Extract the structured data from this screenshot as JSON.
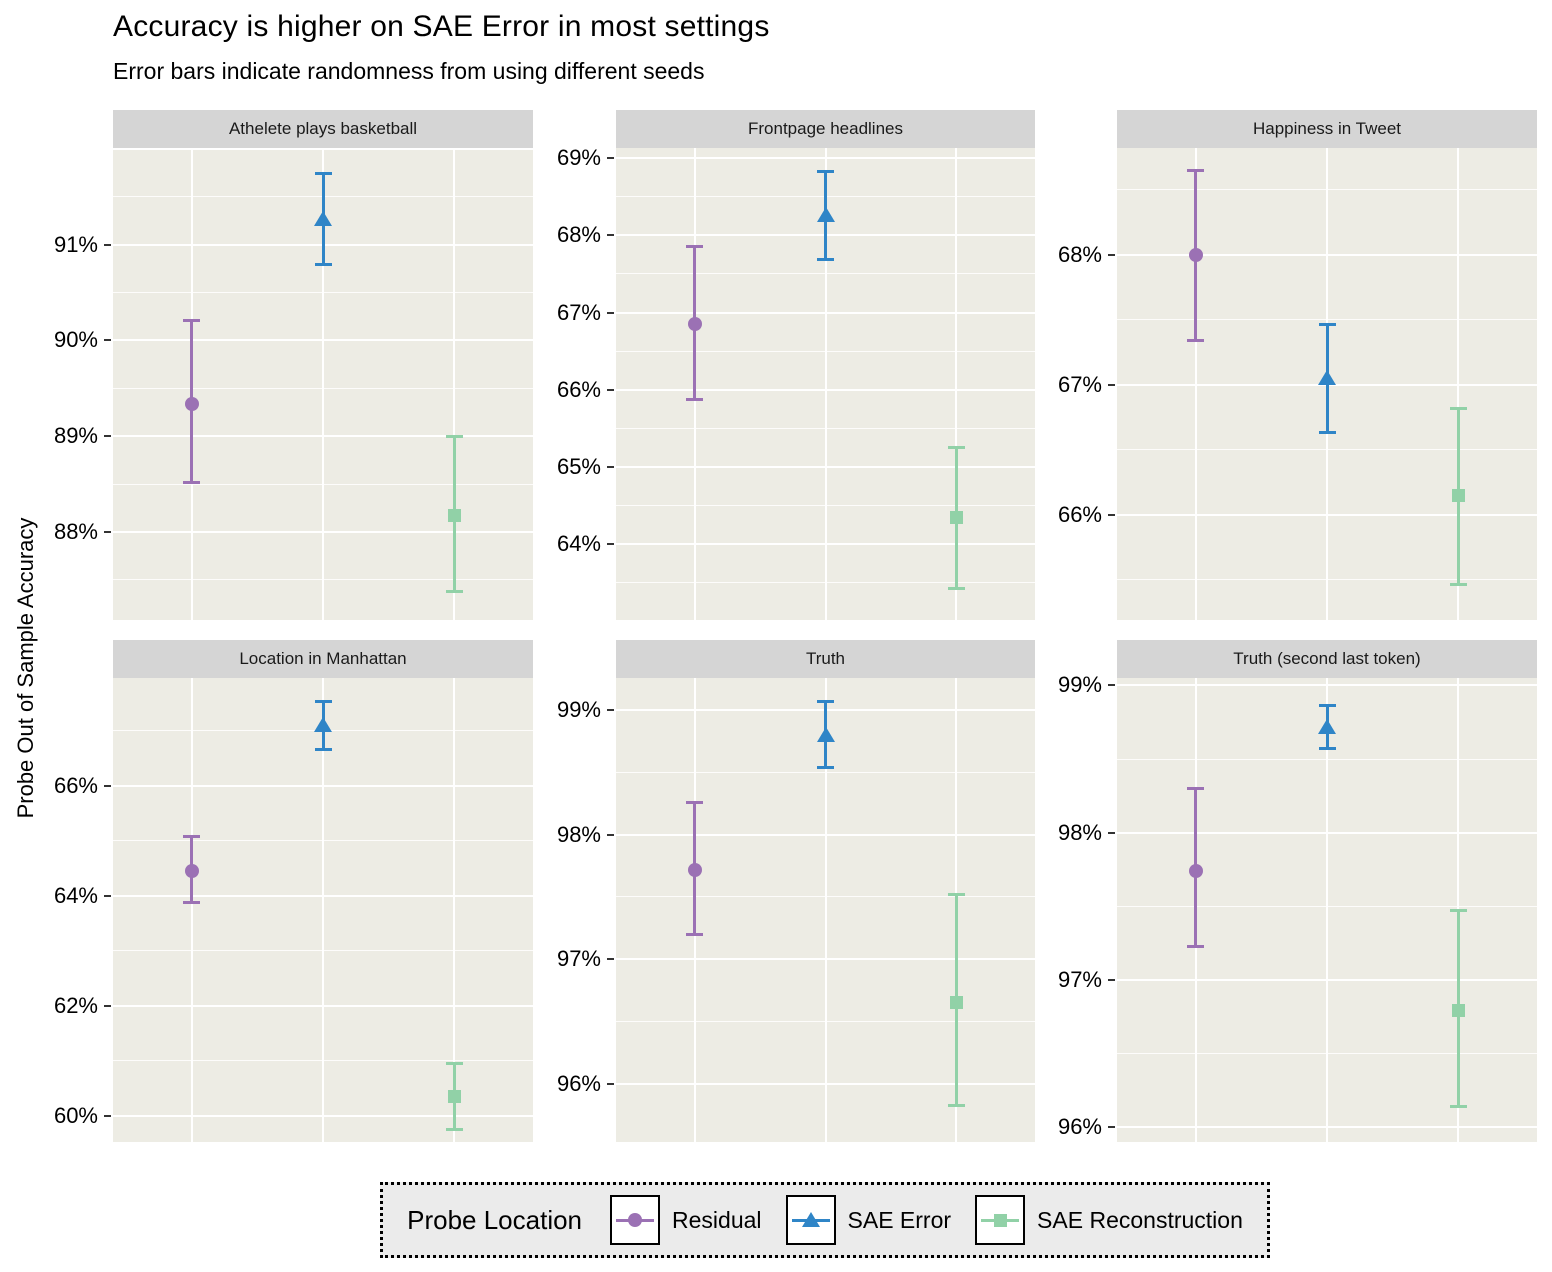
{
  "title": "Accuracy is higher on SAE Error in most settings",
  "subtitle": "Error bars indicate randomness from using different seeds",
  "ylabel": "Probe Out of Sample Accuracy",
  "colors": {
    "residual": "#9B71B4",
    "sae_error": "#2F85C7",
    "sae_reconstruction": "#91D1A7"
  },
  "legend": {
    "title": "Probe Location",
    "items": [
      {
        "label": "Residual",
        "marker": "circle",
        "color_key": "residual"
      },
      {
        "label": "SAE Error",
        "marker": "triangle",
        "color_key": "sae_error"
      },
      {
        "label": "SAE Reconstruction",
        "marker": "square",
        "color_key": "sae_reconstruction"
      }
    ]
  },
  "chart_data": {
    "type": "scatter",
    "subtype": "point-with-errorbars",
    "facet_layout": "2 rows x 3 cols",
    "grid": "on",
    "legend_position": "bottom",
    "x_categories": [
      "Residual",
      "SAE Error",
      "SAE Reconstruction"
    ],
    "series_styles": [
      {
        "name": "Residual",
        "marker": "circle",
        "color_key": "residual"
      },
      {
        "name": "SAE Error",
        "marker": "triangle",
        "color_key": "sae_error"
      },
      {
        "name": "SAE Reconstruction",
        "marker": "square",
        "color_key": "sae_reconstruction"
      }
    ],
    "panels": [
      {
        "title": "Athelete plays basketball",
        "ylim": [
          87.08,
          92.01
        ],
        "major_ticks": [
          {
            "value": 91,
            "label": "91%"
          },
          {
            "value": 90,
            "label": "90%"
          },
          {
            "value": 89,
            "label": "89%"
          },
          {
            "value": 88,
            "label": "88%"
          }
        ],
        "unlabeled_gridlines": [
          92
        ],
        "minor_ticks": [
          91.5,
          90.5,
          89.5,
          88.5,
          87.5
        ],
        "points": [
          {
            "series": "Residual",
            "y": 89.34,
            "lo": 88.52,
            "hi": 90.21
          },
          {
            "series": "SAE Error",
            "y": 91.27,
            "lo": 90.79,
            "hi": 91.74
          },
          {
            "series": "SAE Reconstruction",
            "y": 88.17,
            "lo": 87.38,
            "hi": 89.0
          }
        ]
      },
      {
        "title": "Frontpage headlines",
        "ylim": [
          63.02,
          69.13
        ],
        "major_ticks": [
          {
            "value": 69,
            "label": "69%"
          },
          {
            "value": 68,
            "label": "68%"
          },
          {
            "value": 67,
            "label": "67%"
          },
          {
            "value": 66,
            "label": "66%"
          },
          {
            "value": 65,
            "label": "65%"
          },
          {
            "value": 64,
            "label": "64%"
          }
        ],
        "unlabeled_gridlines": [],
        "minor_ticks": [
          68.5,
          67.5,
          66.5,
          65.5,
          64.5,
          63.5
        ],
        "points": [
          {
            "series": "Residual",
            "y": 66.85,
            "lo": 65.87,
            "hi": 67.85
          },
          {
            "series": "SAE Error",
            "y": 68.26,
            "lo": 67.69,
            "hi": 68.82
          },
          {
            "series": "SAE Reconstruction",
            "y": 64.35,
            "lo": 63.43,
            "hi": 65.25
          }
        ]
      },
      {
        "title": "Happiness in Tweet",
        "ylim": [
          65.19,
          68.82
        ],
        "major_ticks": [
          {
            "value": 68,
            "label": "68%"
          },
          {
            "value": 67,
            "label": "67%"
          },
          {
            "value": 66,
            "label": "66%"
          }
        ],
        "unlabeled_gridlines": [],
        "minor_ticks": [
          68.5,
          67.5,
          66.5,
          65.5
        ],
        "points": [
          {
            "series": "Residual",
            "y": 68.0,
            "lo": 67.34,
            "hi": 68.65
          },
          {
            "series": "SAE Error",
            "y": 67.05,
            "lo": 66.63,
            "hi": 67.46
          },
          {
            "series": "SAE Reconstruction",
            "y": 66.15,
            "lo": 65.46,
            "hi": 66.82
          }
        ]
      },
      {
        "title": "Location in Manhattan",
        "ylim": [
          59.52,
          67.96
        ],
        "major_ticks": [
          {
            "value": 66,
            "label": "66%"
          },
          {
            "value": 64,
            "label": "64%"
          },
          {
            "value": 62,
            "label": "62%"
          },
          {
            "value": 60,
            "label": "60%"
          }
        ],
        "unlabeled_gridlines": [],
        "minor_ticks": [
          67,
          65,
          63,
          61
        ],
        "points": [
          {
            "series": "Residual",
            "y": 64.45,
            "lo": 63.87,
            "hi": 65.07
          },
          {
            "series": "SAE Error",
            "y": 67.1,
            "lo": 66.66,
            "hi": 67.53
          },
          {
            "series": "SAE Reconstruction",
            "y": 60.35,
            "lo": 59.75,
            "hi": 60.95
          }
        ]
      },
      {
        "title": "Truth",
        "ylim": [
          95.53,
          99.26
        ],
        "major_ticks": [
          {
            "value": 99,
            "label": "99%"
          },
          {
            "value": 98,
            "label": "98%"
          },
          {
            "value": 97,
            "label": "97%"
          },
          {
            "value": 96,
            "label": "96%"
          }
        ],
        "unlabeled_gridlines": [],
        "minor_ticks": [
          98.5,
          97.5,
          96.5
        ],
        "points": [
          {
            "series": "Residual",
            "y": 97.72,
            "lo": 97.2,
            "hi": 98.26
          },
          {
            "series": "SAE Error",
            "y": 98.8,
            "lo": 98.54,
            "hi": 99.07
          },
          {
            "series": "SAE Reconstruction",
            "y": 96.65,
            "lo": 95.82,
            "hi": 97.52
          }
        ]
      },
      {
        "title": "Truth (second last token)",
        "ylim": [
          95.9,
          99.05
        ],
        "major_ticks": [
          {
            "value": 99,
            "label": "99%"
          },
          {
            "value": 98,
            "label": "98%"
          },
          {
            "value": 97,
            "label": "97%"
          },
          {
            "value": 96,
            "label": "96%"
          }
        ],
        "unlabeled_gridlines": [],
        "minor_ticks": [
          98.5,
          97.5,
          96.5
        ],
        "points": [
          {
            "series": "Residual",
            "y": 97.74,
            "lo": 97.23,
            "hi": 98.3
          },
          {
            "series": "SAE Error",
            "y": 98.72,
            "lo": 98.57,
            "hi": 98.86
          },
          {
            "series": "SAE Reconstruction",
            "y": 96.79,
            "lo": 96.14,
            "hi": 97.47
          }
        ]
      }
    ]
  }
}
